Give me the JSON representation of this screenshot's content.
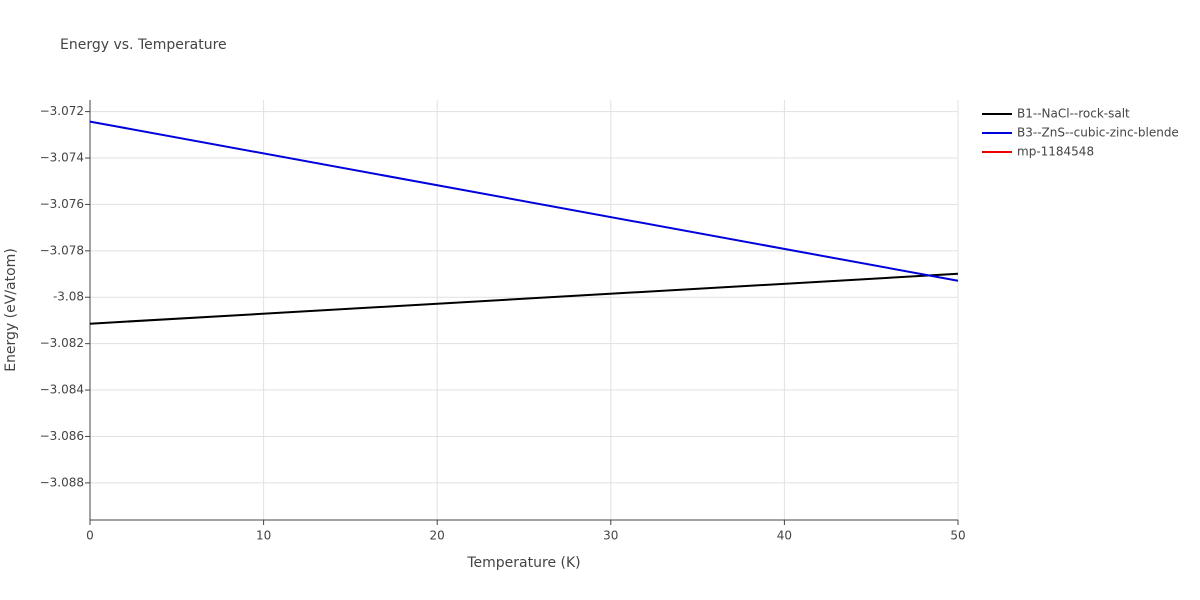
{
  "chart_data": {
    "type": "line",
    "title": "Energy vs. Temperature",
    "x_label": "Temperature (K)",
    "y_label": "Energy (eV/atom)",
    "x": [
      0,
      50
    ],
    "series": [
      {
        "name": "B1--NaCl--rock-salt",
        "color": "#000000",
        "values": [
          -3.08114,
          -3.07899
        ]
      },
      {
        "name": "B3--ZnS--cubic-zinc-blende",
        "color": "#0000dd",
        "values": [
          -3.07243,
          -3.07929
        ]
      },
      {
        "name": "mp-1184548",
        "color": "#ee0000",
        "values": [
          null,
          null
        ]
      }
    ],
    "xlim": [
      0,
      50
    ],
    "xticks": [
      0,
      10,
      20,
      30,
      40,
      50
    ],
    "ylim": [
      -3.0896,
      -3.0715
    ],
    "yticks": [
      {
        "value": -3.088,
        "label": "−3.088"
      },
      {
        "value": -3.086,
        "label": "−3.086"
      },
      {
        "value": -3.084,
        "label": "−3.084"
      },
      {
        "value": -3.082,
        "label": "−3.082"
      },
      {
        "value": -3.08,
        "label": "-3.08"
      },
      {
        "value": -3.078,
        "label": "−3.078"
      },
      {
        "value": -3.076,
        "label": "−3.076"
      },
      {
        "value": -3.074,
        "label": "−3.074"
      },
      {
        "value": -3.072,
        "label": "−3.072"
      }
    ],
    "grid": true,
    "legend": "right"
  }
}
